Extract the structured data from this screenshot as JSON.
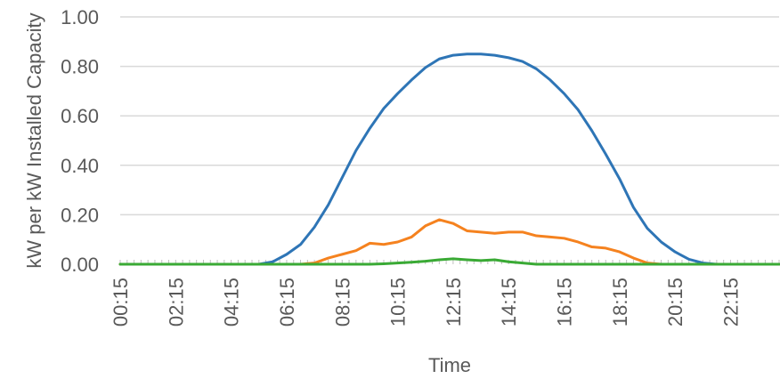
{
  "chart_data": {
    "type": "line",
    "title": "",
    "xlabel": "Time",
    "ylabel": "kW per kW Installed Capacity",
    "ylim": [
      0,
      1.0
    ],
    "yticks": [
      "0.00",
      "0.20",
      "0.40",
      "0.60",
      "0.80",
      "1.00"
    ],
    "xlim": [
      "00:15",
      "24:00"
    ],
    "xticks": [
      "00:15",
      "02:15",
      "04:15",
      "06:15",
      "08:15",
      "10:15",
      "12:15",
      "14:15",
      "16:15",
      "18:15",
      "20:15",
      "22:15"
    ],
    "grid": "horizontal",
    "legend": "none",
    "series": [
      {
        "color": "#2e75b6",
        "points": [
          [
            "00:15",
            0
          ],
          [
            "05:15",
            0
          ],
          [
            "05:45",
            0.01
          ],
          [
            "06:15",
            0.04
          ],
          [
            "06:45",
            0.08
          ],
          [
            "07:15",
            0.15
          ],
          [
            "07:45",
            0.24
          ],
          [
            "08:15",
            0.35
          ],
          [
            "08:45",
            0.46
          ],
          [
            "09:15",
            0.55
          ],
          [
            "09:45",
            0.63
          ],
          [
            "10:15",
            0.69
          ],
          [
            "10:45",
            0.745
          ],
          [
            "11:15",
            0.795
          ],
          [
            "11:45",
            0.83
          ],
          [
            "12:15",
            0.845
          ],
          [
            "12:45",
            0.85
          ],
          [
            "13:15",
            0.85
          ],
          [
            "13:45",
            0.845
          ],
          [
            "14:15",
            0.835
          ],
          [
            "14:45",
            0.82
          ],
          [
            "15:15",
            0.79
          ],
          [
            "15:45",
            0.745
          ],
          [
            "16:15",
            0.69
          ],
          [
            "16:45",
            0.625
          ],
          [
            "17:15",
            0.54
          ],
          [
            "17:45",
            0.445
          ],
          [
            "18:15",
            0.345
          ],
          [
            "18:45",
            0.23
          ],
          [
            "19:15",
            0.145
          ],
          [
            "19:45",
            0.09
          ],
          [
            "20:15",
            0.05
          ],
          [
            "20:45",
            0.02
          ],
          [
            "21:15",
            0.005
          ],
          [
            "21:45",
            0
          ],
          [
            "24:00",
            0
          ]
        ]
      },
      {
        "color": "#f5821f",
        "points": [
          [
            "00:15",
            0
          ],
          [
            "06:45",
            0
          ],
          [
            "07:15",
            0.005
          ],
          [
            "07:45",
            0.025
          ],
          [
            "08:15",
            0.04
          ],
          [
            "08:45",
            0.055
          ],
          [
            "09:15",
            0.085
          ],
          [
            "09:45",
            0.08
          ],
          [
            "10:15",
            0.09
          ],
          [
            "10:45",
            0.11
          ],
          [
            "11:15",
            0.155
          ],
          [
            "11:45",
            0.18
          ],
          [
            "12:15",
            0.165
          ],
          [
            "12:45",
            0.135
          ],
          [
            "13:15",
            0.13
          ],
          [
            "13:45",
            0.125
          ],
          [
            "14:15",
            0.13
          ],
          [
            "14:45",
            0.13
          ],
          [
            "15:15",
            0.115
          ],
          [
            "15:45",
            0.11
          ],
          [
            "16:15",
            0.105
          ],
          [
            "16:45",
            0.09
          ],
          [
            "17:15",
            0.07
          ],
          [
            "17:45",
            0.065
          ],
          [
            "18:15",
            0.05
          ],
          [
            "18:45",
            0.025
          ],
          [
            "19:15",
            0.005
          ],
          [
            "19:45",
            0
          ],
          [
            "24:00",
            0
          ]
        ]
      },
      {
        "color": "#3aaa35",
        "points": [
          [
            "00:15",
            0
          ],
          [
            "09:15",
            0
          ],
          [
            "09:45",
            0.002
          ],
          [
            "10:15",
            0.005
          ],
          [
            "10:45",
            0.008
          ],
          [
            "11:15",
            0.012
          ],
          [
            "11:45",
            0.018
          ],
          [
            "12:15",
            0.022
          ],
          [
            "12:45",
            0.018
          ],
          [
            "13:15",
            0.015
          ],
          [
            "13:45",
            0.018
          ],
          [
            "14:15",
            0.01
          ],
          [
            "14:45",
            0.005
          ],
          [
            "15:15",
            0
          ],
          [
            "24:00",
            0
          ]
        ]
      }
    ]
  }
}
